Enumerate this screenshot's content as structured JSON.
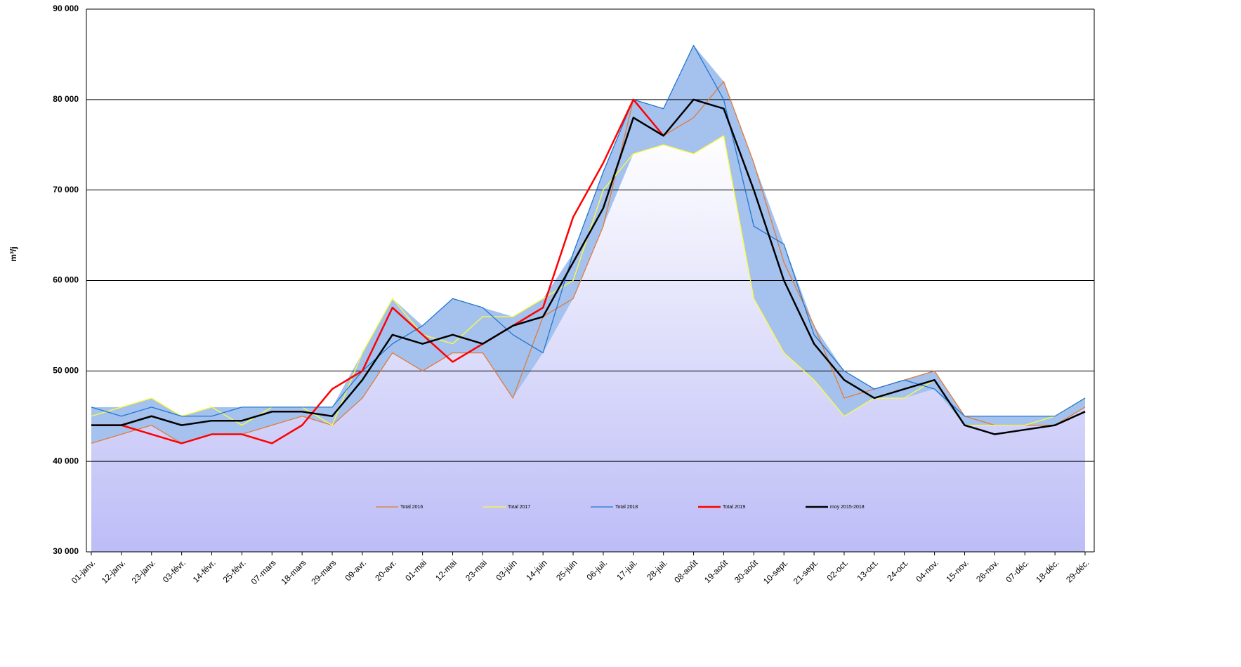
{
  "chart_data": {
    "type": "line",
    "y_label": "m³/j",
    "categories": [
      "01-janv.",
      "12-janv.",
      "23-janv.",
      "03-févr.",
      "14-févr.",
      "25-févr.",
      "07-mars",
      "18-mars",
      "29-mars",
      "09-avr.",
      "20-avr.",
      "01-mai",
      "12-mai",
      "23-mai",
      "03-juin",
      "14-juin",
      "25-juin",
      "06-juil.",
      "17-juil.",
      "28-juil.",
      "08-août",
      "19-août",
      "30-août",
      "10-sept.",
      "21-sept.",
      "02-oct.",
      "13-oct.",
      "24-oct.",
      "04-nov.",
      "15-nov.",
      "26-nov.",
      "07-déc.",
      "18-déc.",
      "29-déc."
    ],
    "series": [
      {
        "name": "Total 2016",
        "color": "#e07b39",
        "width": 1.3,
        "values": [
          42000,
          43000,
          44000,
          42000,
          43000,
          43000,
          44000,
          45000,
          44000,
          47000,
          52000,
          50000,
          52000,
          52000,
          47000,
          56000,
          58000,
          66000,
          80000,
          76000,
          78000,
          82000,
          73000,
          62000,
          55000,
          47000,
          48000,
          49000,
          50000,
          45000,
          44000,
          44000,
          44000,
          46000
        ]
      },
      {
        "name": "Total 2017",
        "color": "#ffff33",
        "width": 1.3,
        "values": [
          45000,
          46000,
          47000,
          45000,
          46000,
          44000,
          46000,
          46000,
          44000,
          52000,
          58000,
          54000,
          53000,
          56000,
          56000,
          58000,
          60000,
          70000,
          74000,
          75000,
          74000,
          76000,
          58000,
          52000,
          49000,
          45000,
          47000,
          47000,
          49000,
          44000,
          44000,
          44000,
          45000,
          47000
        ]
      },
      {
        "name": "Total 2018",
        "color": "#1f77d0",
        "width": 1.3,
        "values": [
          46000,
          45000,
          46000,
          45000,
          45000,
          46000,
          46000,
          46000,
          46000,
          50000,
          53000,
          55000,
          58000,
          57000,
          54000,
          52000,
          63000,
          72000,
          80000,
          79000,
          86000,
          80000,
          66000,
          64000,
          54000,
          50000,
          48000,
          49000,
          48000,
          45000,
          45000,
          45000,
          45000,
          47000
        ]
      },
      {
        "name": "Total 2019",
        "color": "#ff0000",
        "width": 2.5,
        "values": [
          44000,
          44000,
          43000,
          42000,
          43000,
          43000,
          42000,
          44000,
          48000,
          50000,
          57000,
          54000,
          51000,
          53000,
          55000,
          57000,
          67000,
          73000,
          80000,
          76000,
          null,
          null,
          null,
          null,
          null,
          null,
          null,
          null,
          null,
          null,
          null,
          null,
          null,
          null
        ]
      },
      {
        "name": "moy 2015-2018",
        "color": "#000000",
        "width": 2.5,
        "values": [
          44000,
          44000,
          45000,
          44000,
          44500,
          44500,
          45500,
          45500,
          45000,
          49000,
          54000,
          53000,
          54000,
          53000,
          55000,
          56000,
          62000,
          68000,
          78000,
          76000,
          80000,
          79000,
          70000,
          60000,
          53000,
          49000,
          47000,
          48000,
          49000,
          44000,
          43000,
          43500,
          44000,
          45500
        ]
      }
    ],
    "ylim": [
      30000,
      90000
    ],
    "yticks": [
      {
        "value": 30000,
        "label": "30 000"
      },
      {
        "value": 40000,
        "label": "40 000"
      },
      {
        "value": 50000,
        "label": "50 000"
      },
      {
        "value": 60000,
        "label": "60 000"
      },
      {
        "value": 70000,
        "label": "70 000"
      },
      {
        "value": 80000,
        "label": "80 000"
      },
      {
        "value": 90000,
        "label": "90 000"
      }
    ],
    "grid": true,
    "legend": "bottom"
  }
}
